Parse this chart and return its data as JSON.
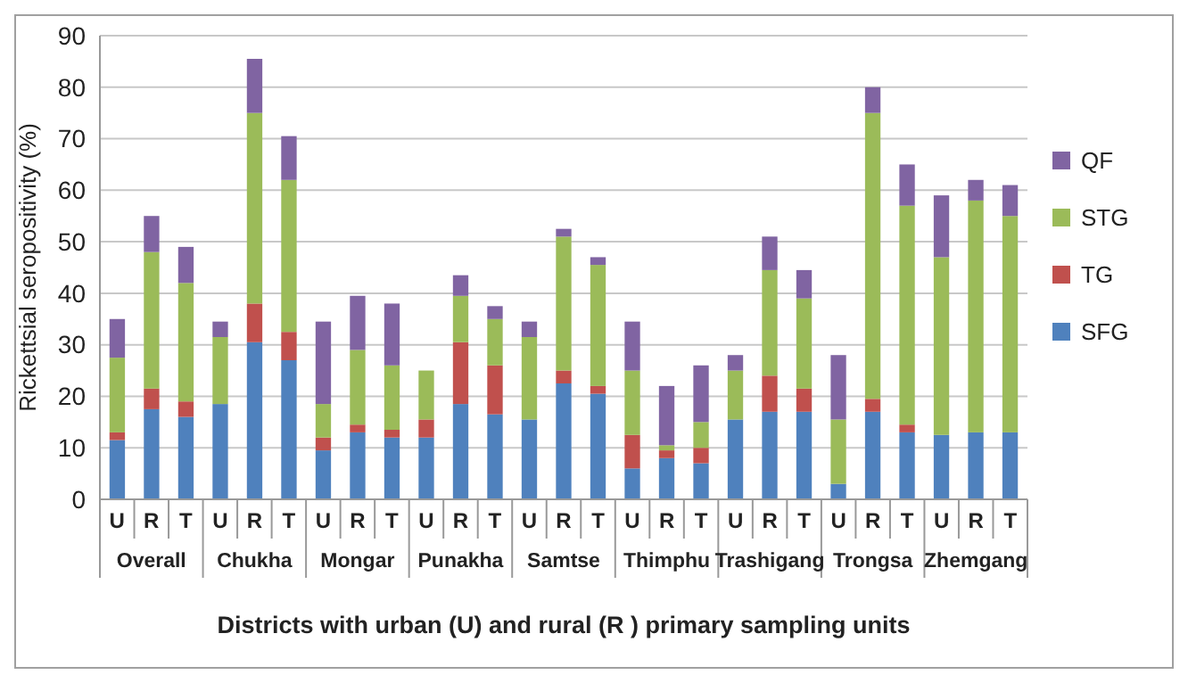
{
  "chart_data": {
    "type": "bar",
    "stacked": true,
    "xlabel": "Districts with urban (U) and rural (R ) primary sampling units",
    "ylabel": "Rickettsial seropositivity (%)",
    "categories": [
      "U",
      "R",
      "T",
      "U",
      "R",
      "T",
      "U",
      "R",
      "T",
      "U",
      "R",
      "T",
      "U",
      "R",
      "T",
      "U",
      "R",
      "T",
      "U",
      "R",
      "T",
      "U",
      "R",
      "T",
      "U",
      "R",
      "T"
    ],
    "annotations": [
      "Overall",
      "Chukha",
      "Mongar",
      "Punakha",
      "Samtse",
      "Thimphu",
      "Trashigang",
      "Trongsa",
      "Zhemgang"
    ],
    "series": [
      {
        "name": "SFG",
        "color": "#4f81bd",
        "values": [
          11.5,
          17.5,
          16,
          18.5,
          30.5,
          27,
          9.5,
          13,
          12,
          12,
          18.5,
          16.5,
          15.5,
          22.5,
          20.5,
          6,
          8,
          7,
          15.5,
          17,
          17,
          3,
          17,
          13,
          12.5,
          13,
          13
        ]
      },
      {
        "name": "TG",
        "color": "#c0504d",
        "values": [
          1.5,
          4,
          3,
          0,
          7.5,
          5.5,
          2.5,
          1.5,
          1.5,
          3.5,
          12,
          9.5,
          0,
          2.5,
          1.5,
          6.5,
          1.5,
          3,
          0,
          7,
          4.5,
          0,
          2.5,
          1.5,
          0,
          0,
          0
        ]
      },
      {
        "name": "STG",
        "color": "#9bbb59",
        "values": [
          14.5,
          26.5,
          23,
          13,
          37,
          29.5,
          6.5,
          14.5,
          12.5,
          9.5,
          9,
          9,
          16,
          26,
          23.5,
          12.5,
          1,
          5,
          9.5,
          20.5,
          17.5,
          12.5,
          55.5,
          42.5,
          34.5,
          45,
          42
        ]
      },
      {
        "name": "QF",
        "color": "#8064a2",
        "values": [
          7.5,
          7,
          7,
          3,
          10.5,
          8.5,
          16,
          10.5,
          12,
          0,
          4,
          2.5,
          3,
          1.5,
          1.5,
          9.5,
          11.5,
          11,
          3,
          6.5,
          5.5,
          12.5,
          5,
          8,
          12,
          4,
          6
        ]
      }
    ],
    "ylim": [
      0,
      90
    ],
    "yticks": [
      0,
      10,
      20,
      30,
      40,
      50,
      60,
      70,
      80,
      90
    ],
    "grid": "y",
    "legend": "right"
  }
}
